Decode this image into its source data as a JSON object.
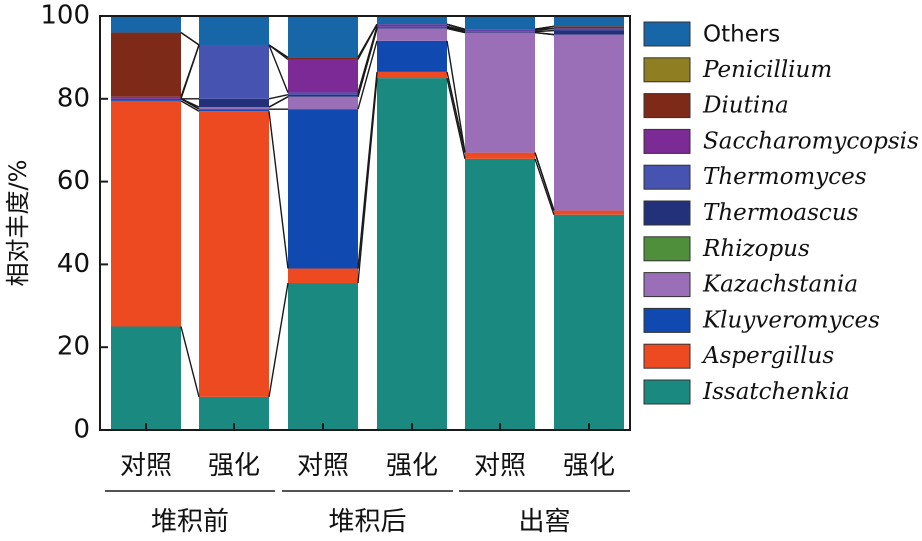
{
  "chart_data": {
    "type": "bar",
    "stacked": true,
    "ylabel": "相对丰度/%",
    "ylim": [
      0,
      100
    ],
    "yticks": [
      0,
      20,
      40,
      60,
      80,
      100
    ],
    "categories": [
      "对照",
      "强化",
      "对照",
      "强化",
      "对照",
      "强化"
    ],
    "groups": [
      {
        "label": "堆积前",
        "categories": [
          0,
          1
        ]
      },
      {
        "label": "堆积后",
        "categories": [
          2,
          3
        ]
      },
      {
        "label": "出窖",
        "categories": [
          4,
          5
        ]
      }
    ],
    "series": [
      {
        "name": "Issatchenkia",
        "color": "#1a8a80",
        "values": [
          25,
          8,
          35.5,
          85,
          65.5,
          52
        ]
      },
      {
        "name": "Aspergillus",
        "color": "#ee4a22",
        "values": [
          54.5,
          69,
          3.5,
          1.5,
          1.5,
          1
        ]
      },
      {
        "name": "Kluyveromyces",
        "color": "#1049b0",
        "values": [
          0.5,
          0.5,
          38.5,
          7.5,
          0,
          0
        ]
      },
      {
        "name": "Kazachstania",
        "color": "#9a6fb8",
        "values": [
          0,
          0.5,
          3,
          3,
          29,
          42.5
        ]
      },
      {
        "name": "Rhizopus",
        "color": "#4f8f3c",
        "values": [
          0,
          0,
          0,
          0,
          0,
          0
        ]
      },
      {
        "name": "Thermoascus",
        "color": "#23307a",
        "values": [
          0,
          2,
          0.5,
          0.3,
          0.2,
          1
        ]
      },
      {
        "name": "Thermomyces",
        "color": "#4653b0",
        "values": [
          0,
          13,
          0.5,
          0.2,
          0.3,
          0.5
        ]
      },
      {
        "name": "Saccharomycopsis",
        "color": "#7b2a96",
        "values": [
          0.5,
          0,
          8,
          0.5,
          0.3,
          0
        ]
      },
      {
        "name": "Diutina",
        "color": "#7e2a18",
        "values": [
          15.5,
          0,
          0.5,
          0,
          0,
          0.5
        ]
      },
      {
        "name": "Penicillium",
        "color": "#8f7e22",
        "values": [
          0,
          0,
          0,
          0,
          0,
          0
        ]
      },
      {
        "name": "Others",
        "color": "#1666a8",
        "values": [
          4,
          7,
          10,
          2,
          3.2,
          2.5
        ]
      }
    ],
    "legend_order": [
      "Others",
      "Penicillium",
      "Diutina",
      "Saccharomycopsis",
      "Thermomyces",
      "Thermoascus",
      "Rhizopus",
      "Kazachstania",
      "Kluyveromyces",
      "Aspergillus",
      "Issatchenkia"
    ],
    "legend_upright": [
      "Others"
    ],
    "legend_position": "right",
    "grid": false
  }
}
